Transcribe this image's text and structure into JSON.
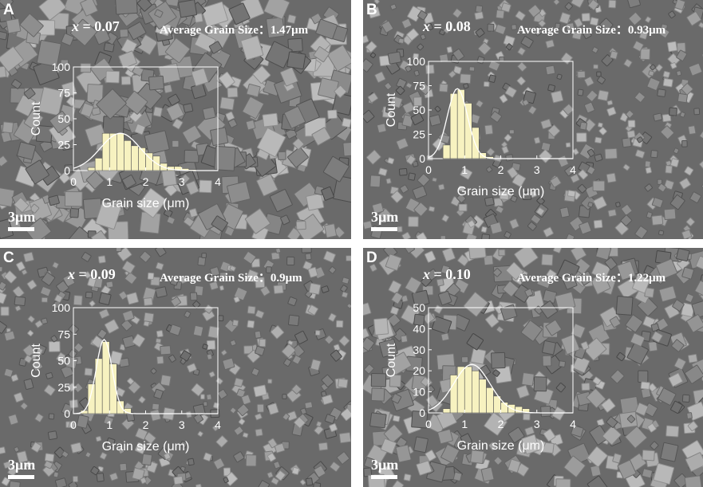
{
  "panels": [
    {
      "letter": "A",
      "x_label": "x",
      "x_value": "= 0.07",
      "avg_label": "Average Grain Size：",
      "avg_value": "1.47μm",
      "scale": "3μm"
    },
    {
      "letter": "B",
      "x_label": "x",
      "x_value": "= 0.08",
      "avg_label": "Average Grain Size：",
      "avg_value": "0.93μm",
      "scale": "3μm"
    },
    {
      "letter": "C",
      "x_label": "x",
      "x_value": "= 0.09",
      "avg_label": "Average Grain Size：",
      "avg_value": "0.9μm",
      "scale": "3μm"
    },
    {
      "letter": "D",
      "x_label": "x",
      "x_value": "= 0.10",
      "avg_label": "Average Grain Size：",
      "avg_value": "1.22μm",
      "scale": "3μm"
    }
  ],
  "colors": {
    "bar": "#f7f2c0",
    "bar_edge": "#555555",
    "fit": "#ffffff",
    "axis": "#ffffff",
    "background": "#6a6a6a"
  },
  "chart_data": [
    {
      "type": "bar",
      "panel": "A",
      "xlabel": "Grain size (μm)",
      "ylabel": "Count",
      "xlim": [
        0,
        4
      ],
      "ylim": [
        0,
        100
      ],
      "xticks": [
        "0",
        "1",
        "2",
        "3",
        "4"
      ],
      "yticks": [
        "0",
        "25",
        "50",
        "75",
        "100"
      ],
      "bin_width": 0.2,
      "bins": [
        0.4,
        0.6,
        0.8,
        1.0,
        1.2,
        1.4,
        1.6,
        1.8,
        2.0,
        2.2,
        2.4,
        2.6,
        2.8,
        3.0,
        3.2
      ],
      "values": [
        3,
        12,
        36,
        36,
        36,
        29,
        24,
        22,
        17,
        14,
        7,
        4,
        4,
        2,
        1
      ],
      "fit": {
        "mean": 1.3,
        "sigma": 0.55,
        "peak": 36
      }
    },
    {
      "type": "bar",
      "panel": "B",
      "xlabel": "Grain size (μm)",
      "ylabel": "Count",
      "xlim": [
        0,
        4
      ],
      "ylim": [
        0,
        100
      ],
      "xticks": [
        "0",
        "1",
        "2",
        "3",
        "4"
      ],
      "yticks": [
        "0",
        "25",
        "50",
        "75",
        "100"
      ],
      "bin_width": 0.2,
      "bins": [
        0.4,
        0.6,
        0.8,
        1.0,
        1.2,
        1.4,
        1.6
      ],
      "values": [
        14,
        67,
        71,
        57,
        32,
        6,
        2
      ],
      "fit": {
        "mean": 0.8,
        "sigma": 0.28,
        "peak": 72
      }
    },
    {
      "type": "bar",
      "panel": "C",
      "xlabel": "Grain size (μm)",
      "ylabel": "Count",
      "xlim": [
        0,
        4
      ],
      "ylim": [
        0,
        100
      ],
      "xticks": [
        "0",
        "1",
        "2",
        "3",
        "4"
      ],
      "yticks": [
        "0",
        "25",
        "50",
        "75",
        "100"
      ],
      "bin_width": 0.2,
      "bins": [
        0.2,
        0.4,
        0.6,
        0.8,
        1.0,
        1.2,
        1.4
      ],
      "values": [
        3,
        28,
        52,
        68,
        47,
        12,
        5
      ],
      "fit": {
        "mean": 0.85,
        "sigma": 0.22,
        "peak": 70
      }
    },
    {
      "type": "bar",
      "panel": "D",
      "xlabel": "Grain size (μm)",
      "ylabel": "Count",
      "xlim": [
        0,
        4
      ],
      "ylim": [
        0,
        50
      ],
      "xticks": [
        "0",
        "1",
        "2",
        "3",
        "4"
      ],
      "yticks": [
        "0",
        "10",
        "20",
        "30",
        "40",
        "50"
      ],
      "bin_width": 0.2,
      "bins": [
        0.4,
        0.6,
        0.8,
        1.0,
        1.2,
        1.4,
        1.6,
        1.8,
        2.0,
        2.2,
        2.4,
        2.6
      ],
      "values": [
        2,
        18,
        22,
        22,
        20,
        16,
        12,
        8,
        5,
        4,
        3,
        2
      ],
      "fit": {
        "mean": 1.2,
        "sigma": 0.5,
        "peak": 23
      }
    }
  ]
}
